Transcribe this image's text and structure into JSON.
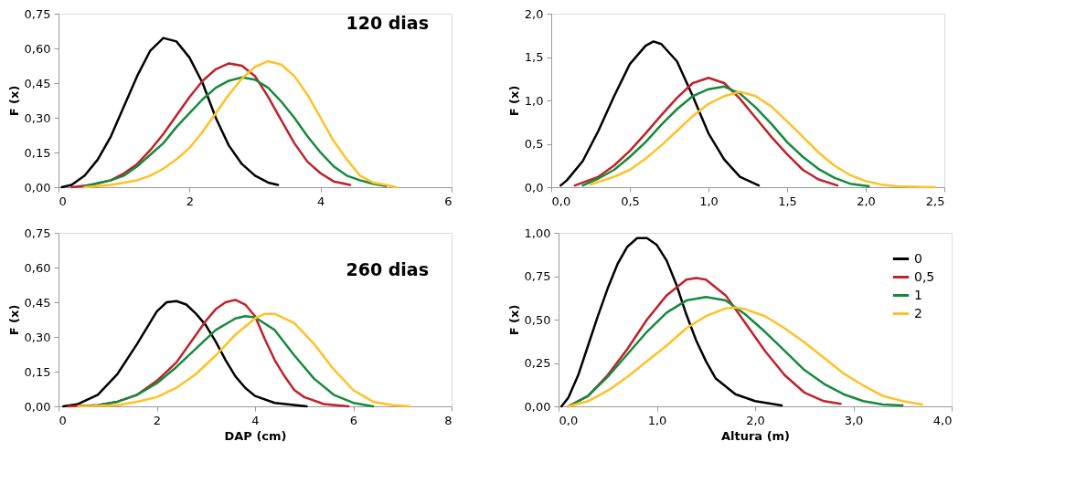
{
  "chart_data": [
    {
      "type": "line",
      "ylabel": "F (x)",
      "annotations": [
        "120 dias"
      ],
      "grid": false,
      "marker": "none",
      "line_style": "solid",
      "xlim": [
        0,
        6
      ],
      "xticks": [
        0,
        2,
        4,
        6
      ],
      "ylim": [
        0,
        0.75
      ],
      "yticks": [
        {
          "value": 0,
          "label": "0,00"
        },
        {
          "value": 0.15,
          "label": "0,15"
        },
        {
          "value": 0.3,
          "label": "0,30"
        },
        {
          "value": 0.45,
          "label": "0,45"
        },
        {
          "value": 0.6,
          "label": "0,60"
        },
        {
          "value": 0.75,
          "label": "0,75"
        }
      ],
      "series": [
        {
          "color": "#000000",
          "x": [
            0.05,
            0.2,
            0.4,
            0.6,
            0.8,
            1.0,
            1.2,
            1.4,
            1.6,
            1.8,
            2.0,
            2.2,
            2.4,
            2.6,
            2.8,
            3.0,
            3.2,
            3.35
          ],
          "values": [
            0,
            0.01,
            0.05,
            0.12,
            0.22,
            0.35,
            0.48,
            0.59,
            0.645,
            0.63,
            0.56,
            0.45,
            0.3,
            0.18,
            0.1,
            0.05,
            0.02,
            0.01
          ]
        },
        {
          "color": "#c0222a",
          "x": [
            0.2,
            0.5,
            0.8,
            1.0,
            1.2,
            1.4,
            1.6,
            1.8,
            2.0,
            2.2,
            2.4,
            2.6,
            2.8,
            3.0,
            3.2,
            3.4,
            3.6,
            3.8,
            4.0,
            4.2,
            4.45
          ],
          "values": [
            0,
            0.01,
            0.03,
            0.06,
            0.1,
            0.16,
            0.23,
            0.31,
            0.39,
            0.46,
            0.51,
            0.535,
            0.525,
            0.48,
            0.39,
            0.29,
            0.19,
            0.11,
            0.06,
            0.025,
            0.01
          ]
        },
        {
          "color": "#158a3c",
          "x": [
            0.4,
            0.8,
            1.0,
            1.2,
            1.4,
            1.6,
            1.8,
            2.0,
            2.2,
            2.4,
            2.6,
            2.8,
            3.0,
            3.2,
            3.4,
            3.6,
            3.8,
            4.0,
            4.2,
            4.4,
            4.6,
            4.8,
            5.0
          ],
          "values": [
            0.005,
            0.03,
            0.05,
            0.09,
            0.14,
            0.19,
            0.26,
            0.32,
            0.38,
            0.43,
            0.46,
            0.475,
            0.465,
            0.43,
            0.37,
            0.3,
            0.22,
            0.15,
            0.09,
            0.05,
            0.03,
            0.015,
            0.005
          ]
        },
        {
          "color": "#ffc125",
          "x": [
            0.4,
            0.8,
            1.2,
            1.4,
            1.6,
            1.8,
            2.0,
            2.2,
            2.4,
            2.6,
            2.8,
            3.0,
            3.2,
            3.4,
            3.6,
            3.8,
            4.0,
            4.2,
            4.4,
            4.6,
            4.8,
            5.0,
            5.15
          ],
          "values": [
            0,
            0.01,
            0.03,
            0.05,
            0.08,
            0.12,
            0.17,
            0.24,
            0.32,
            0.4,
            0.47,
            0.52,
            0.545,
            0.53,
            0.48,
            0.4,
            0.3,
            0.2,
            0.12,
            0.05,
            0.02,
            0.01,
            0
          ]
        }
      ]
    },
    {
      "type": "line",
      "ylabel": "F (x)",
      "grid": false,
      "marker": "none",
      "line_style": "solid",
      "xlim": [
        0,
        2.5
      ],
      "xticks": [
        {
          "value": 0,
          "label": "0,0"
        },
        {
          "value": 0.5,
          "label": "0,5"
        },
        {
          "value": 1,
          "label": "1,0"
        },
        {
          "value": 1.5,
          "label": "1,5"
        },
        {
          "value": 2,
          "label": "2,0"
        },
        {
          "value": 2.5,
          "label": "2,5"
        }
      ],
      "ylim": [
        0,
        2
      ],
      "yticks": [
        {
          "value": 0,
          "label": "0,0"
        },
        {
          "value": 0.5,
          "label": "0,5"
        },
        {
          "value": 1,
          "label": "1,0"
        },
        {
          "value": 1.5,
          "label": "1,5"
        },
        {
          "value": 2,
          "label": "2,0"
        }
      ],
      "series": [
        {
          "color": "#000000",
          "x": [
            0.06,
            0.1,
            0.2,
            0.3,
            0.4,
            0.5,
            0.6,
            0.65,
            0.7,
            0.8,
            0.9,
            1.0,
            1.1,
            1.2,
            1.32
          ],
          "values": [
            0.02,
            0.08,
            0.3,
            0.65,
            1.05,
            1.42,
            1.63,
            1.68,
            1.65,
            1.45,
            1.05,
            0.62,
            0.32,
            0.12,
            0.02
          ]
        },
        {
          "color": "#c0222a",
          "x": [
            0.15,
            0.3,
            0.4,
            0.5,
            0.6,
            0.7,
            0.8,
            0.9,
            1.0,
            1.1,
            1.2,
            1.3,
            1.4,
            1.5,
            1.6,
            1.7,
            1.82
          ],
          "values": [
            0.02,
            0.12,
            0.25,
            0.42,
            0.62,
            0.83,
            1.03,
            1.2,
            1.26,
            1.2,
            1.02,
            0.8,
            0.58,
            0.38,
            0.2,
            0.09,
            0.02
          ]
        },
        {
          "color": "#158a3c",
          "x": [
            0.2,
            0.3,
            0.4,
            0.5,
            0.6,
            0.7,
            0.8,
            0.9,
            1.0,
            1.1,
            1.2,
            1.3,
            1.4,
            1.5,
            1.6,
            1.7,
            1.8,
            1.9,
            2.02
          ],
          "values": [
            0.02,
            0.1,
            0.2,
            0.35,
            0.52,
            0.72,
            0.9,
            1.05,
            1.13,
            1.16,
            1.08,
            0.92,
            0.73,
            0.52,
            0.35,
            0.21,
            0.11,
            0.04,
            0.01
          ]
        },
        {
          "color": "#ffc125",
          "x": [
            0.25,
            0.4,
            0.5,
            0.6,
            0.7,
            0.8,
            0.9,
            1.0,
            1.1,
            1.2,
            1.3,
            1.4,
            1.5,
            1.6,
            1.7,
            1.8,
            1.9,
            2.0,
            2.1,
            2.2,
            2.44
          ],
          "values": [
            0.03,
            0.12,
            0.2,
            0.33,
            0.48,
            0.65,
            0.82,
            0.96,
            1.05,
            1.1,
            1.05,
            0.93,
            0.76,
            0.58,
            0.4,
            0.25,
            0.14,
            0.07,
            0.03,
            0.01,
            0
          ]
        }
      ]
    },
    {
      "type": "line",
      "ylabel": "F (x)",
      "xlabel": "DAP (cm)",
      "annotations": [
        "260 dias"
      ],
      "grid": false,
      "marker": "none",
      "line_style": "solid",
      "xlim": [
        0,
        8
      ],
      "xticks": [
        0,
        2,
        4,
        6,
        8
      ],
      "ylim": [
        0,
        0.75
      ],
      "yticks": [
        {
          "value": 0,
          "label": "0,00"
        },
        {
          "value": 0.15,
          "label": "0,15"
        },
        {
          "value": 0.3,
          "label": "0,30"
        },
        {
          "value": 0.45,
          "label": "0,45"
        },
        {
          "value": 0.6,
          "label": "0,60"
        },
        {
          "value": 0.75,
          "label": "0,75"
        }
      ],
      "series": [
        {
          "color": "#000000",
          "x": [
            0.1,
            0.4,
            0.8,
            1.2,
            1.6,
            2.0,
            2.2,
            2.4,
            2.6,
            2.8,
            3.0,
            3.2,
            3.4,
            3.6,
            3.8,
            4.0,
            4.4,
            5.05
          ],
          "values": [
            0,
            0.01,
            0.05,
            0.14,
            0.27,
            0.41,
            0.45,
            0.455,
            0.44,
            0.4,
            0.35,
            0.28,
            0.2,
            0.13,
            0.08,
            0.045,
            0.015,
            0
          ]
        },
        {
          "color": "#c0222a",
          "x": [
            0.2,
            0.8,
            1.2,
            1.6,
            2.0,
            2.4,
            2.8,
            3.0,
            3.2,
            3.4,
            3.6,
            3.8,
            4.0,
            4.2,
            4.4,
            4.6,
            4.8,
            5.0,
            5.4,
            5.9
          ],
          "values": [
            0,
            0.005,
            0.02,
            0.05,
            0.11,
            0.19,
            0.31,
            0.37,
            0.42,
            0.45,
            0.46,
            0.44,
            0.39,
            0.29,
            0.2,
            0.13,
            0.07,
            0.04,
            0.01,
            0
          ]
        },
        {
          "color": "#158a3c",
          "x": [
            0.4,
            0.8,
            1.2,
            1.6,
            2.0,
            2.4,
            2.8,
            3.2,
            3.6,
            3.8,
            4.0,
            4.4,
            4.8,
            5.2,
            5.6,
            6.0,
            6.4
          ],
          "values": [
            0,
            0.005,
            0.02,
            0.05,
            0.1,
            0.17,
            0.25,
            0.33,
            0.38,
            0.39,
            0.385,
            0.33,
            0.22,
            0.12,
            0.05,
            0.015,
            0
          ]
        },
        {
          "color": "#ffc125",
          "x": [
            0.4,
            1.2,
            1.6,
            2.0,
            2.4,
            2.8,
            3.2,
            3.6,
            4.0,
            4.2,
            4.4,
            4.8,
            5.2,
            5.6,
            6.0,
            6.4,
            6.8,
            7.15
          ],
          "values": [
            0,
            0.005,
            0.02,
            0.04,
            0.08,
            0.14,
            0.22,
            0.31,
            0.38,
            0.4,
            0.4,
            0.36,
            0.27,
            0.16,
            0.07,
            0.02,
            0.005,
            0
          ]
        }
      ]
    },
    {
      "type": "line",
      "ylabel": "F (x)",
      "xlabel": "Altura (m)",
      "grid": false,
      "marker": "none",
      "line_style": "solid",
      "legend": "top right",
      "xlim": [
        0,
        4
      ],
      "xticks": [
        {
          "value": 0,
          "label": "0,0"
        },
        {
          "value": 1,
          "label": "1,0"
        },
        {
          "value": 2,
          "label": "2,0"
        },
        {
          "value": 3,
          "label": "3,0"
        },
        {
          "value": 4,
          "label": "4,0"
        }
      ],
      "ylim": [
        0,
        1
      ],
      "yticks": [
        {
          "value": 0,
          "label": "0,00"
        },
        {
          "value": 0.25,
          "label": "0,25"
        },
        {
          "value": 0.5,
          "label": "0,50"
        },
        {
          "value": 0.75,
          "label": "0,75"
        },
        {
          "value": 1,
          "label": "1,00"
        }
      ],
      "series": [
        {
          "name": "0",
          "color": "#000000",
          "x": [
            0.03,
            0.1,
            0.2,
            0.3,
            0.4,
            0.5,
            0.6,
            0.7,
            0.8,
            0.9,
            1.0,
            1.1,
            1.2,
            1.3,
            1.4,
            1.5,
            1.6,
            1.8,
            2.0,
            2.27
          ],
          "values": [
            0,
            0.05,
            0.18,
            0.35,
            0.52,
            0.68,
            0.82,
            0.92,
            0.97,
            0.97,
            0.93,
            0.84,
            0.7,
            0.53,
            0.38,
            0.26,
            0.16,
            0.07,
            0.03,
            0.005
          ]
        },
        {
          "name": "0,5",
          "color": "#c0222a",
          "x": [
            0.1,
            0.3,
            0.5,
            0.7,
            0.9,
            1.1,
            1.3,
            1.4,
            1.5,
            1.7,
            1.9,
            2.1,
            2.3,
            2.5,
            2.7,
            2.87
          ],
          "values": [
            0,
            0.06,
            0.18,
            0.33,
            0.5,
            0.64,
            0.73,
            0.74,
            0.73,
            0.64,
            0.48,
            0.32,
            0.18,
            0.08,
            0.03,
            0.015
          ]
        },
        {
          "name": "1",
          "color": "#158a3c",
          "x": [
            0.1,
            0.3,
            0.5,
            0.7,
            0.9,
            1.1,
            1.3,
            1.5,
            1.7,
            1.9,
            2.1,
            2.3,
            2.5,
            2.7,
            2.9,
            3.1,
            3.3,
            3.5
          ],
          "values": [
            0,
            0.06,
            0.17,
            0.3,
            0.43,
            0.54,
            0.61,
            0.63,
            0.61,
            0.53,
            0.43,
            0.32,
            0.21,
            0.13,
            0.07,
            0.03,
            0.01,
            0.005
          ]
        },
        {
          "name": "2",
          "color": "#ffc125",
          "x": [
            0.1,
            0.3,
            0.5,
            0.7,
            0.9,
            1.1,
            1.3,
            1.5,
            1.7,
            1.8,
            1.9,
            2.1,
            2.3,
            2.5,
            2.7,
            2.9,
            3.1,
            3.3,
            3.5,
            3.7
          ],
          "values": [
            0,
            0.03,
            0.09,
            0.17,
            0.26,
            0.35,
            0.45,
            0.52,
            0.565,
            0.57,
            0.56,
            0.52,
            0.45,
            0.37,
            0.28,
            0.19,
            0.12,
            0.06,
            0.03,
            0.01
          ]
        }
      ]
    }
  ]
}
